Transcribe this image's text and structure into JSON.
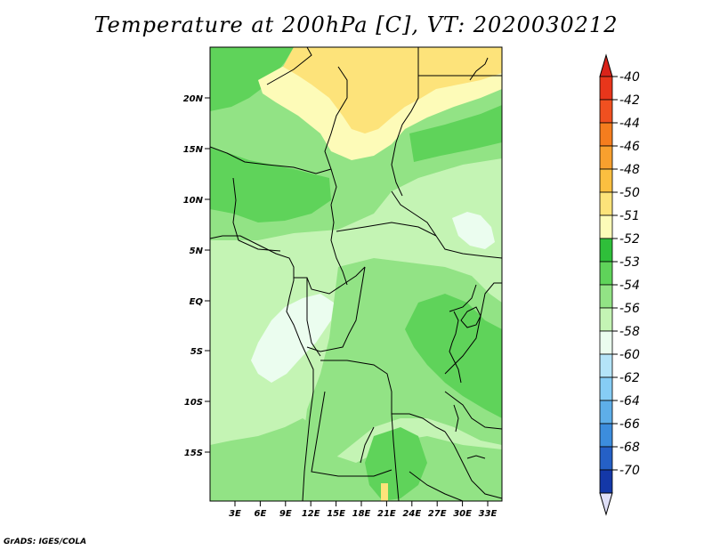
{
  "title": "Temperature at 200hPa [C], VT: 2020030212",
  "credit": "GrADS: IGES/COLA",
  "map": {
    "lat_labels": [
      "20N",
      "15N",
      "10N",
      "5N",
      "EQ",
      "5S",
      "10S",
      "15S"
    ],
    "lon_labels": [
      "3E",
      "6E",
      "9E",
      "12E",
      "15E",
      "18E",
      "21E",
      "24E",
      "27E",
      "30E",
      "33E"
    ]
  },
  "colorbar": {
    "levels": [
      {
        "label": "-40",
        "color": "#e8361b"
      },
      {
        "label": "-42",
        "color": "#f05020"
      },
      {
        "label": "-44",
        "color": "#f57d1e"
      },
      {
        "label": "-46",
        "color": "#f8a02e"
      },
      {
        "label": "-48",
        "color": "#fbbf40"
      },
      {
        "label": "-50",
        "color": "#fde37a"
      },
      {
        "label": "-51",
        "color": "#fdfbb8"
      },
      {
        "label": "-52",
        "color": "#2fbf3a"
      },
      {
        "label": "-53",
        "color": "#5fd35a"
      },
      {
        "label": "-54",
        "color": "#92e385"
      },
      {
        "label": "-56",
        "color": "#c4f4b4"
      },
      {
        "label": "-58",
        "color": "#ebfdef"
      },
      {
        "label": "-60",
        "color": "#b4e4f8"
      },
      {
        "label": "-62",
        "color": "#86cdf5"
      },
      {
        "label": "-64",
        "color": "#5eaee9"
      },
      {
        "label": "-66",
        "color": "#3c8ddd"
      },
      {
        "label": "-68",
        "color": "#2560c6"
      },
      {
        "label": "-70",
        "color": "#1438a8"
      }
    ],
    "top_color": "#d9231a",
    "bottom_color": "#08106e",
    "over_color": "#d9231a",
    "under_color": "#e0e0f8"
  }
}
